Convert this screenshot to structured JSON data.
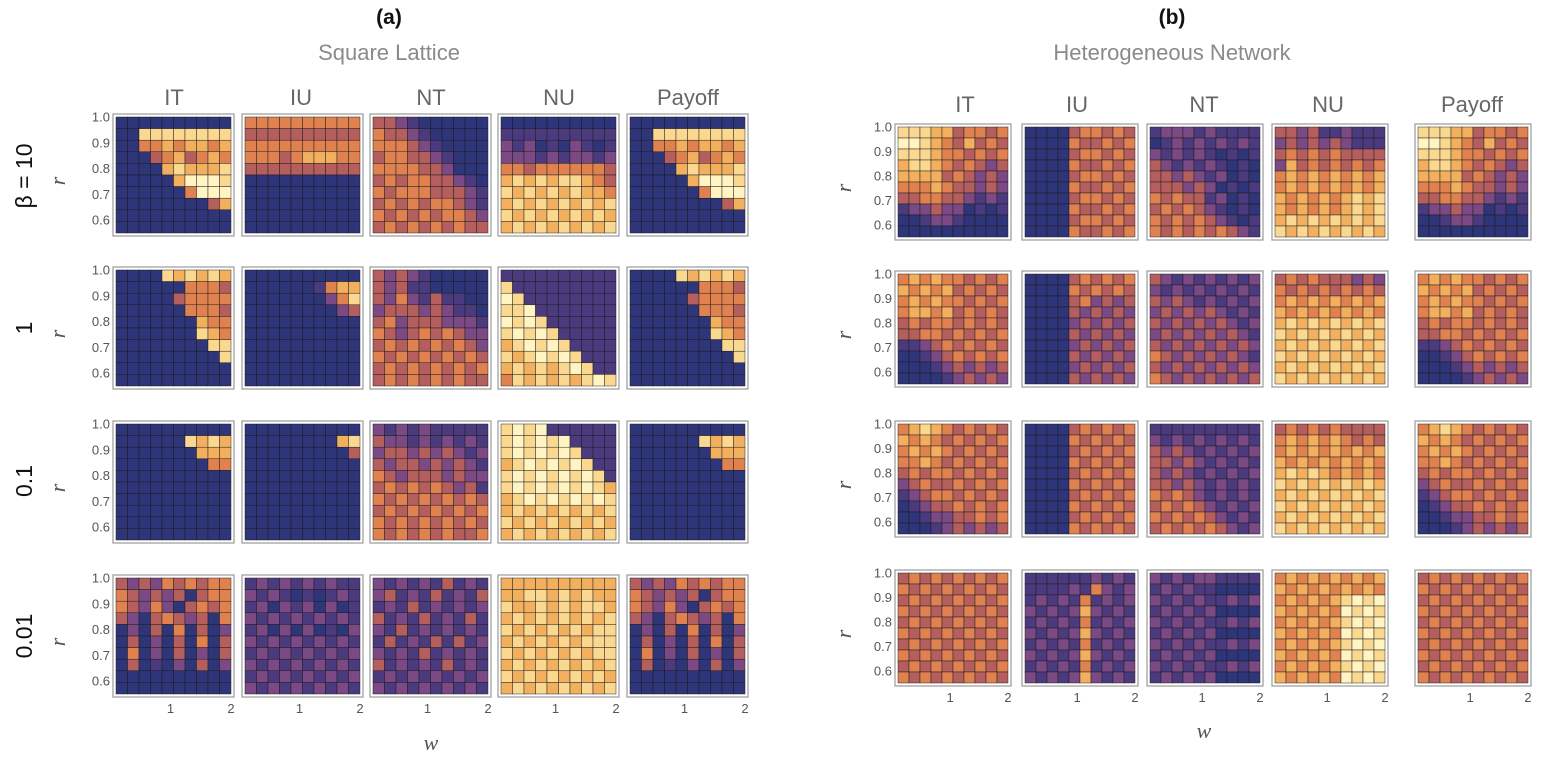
{
  "chart_data": {
    "type": "heatmap",
    "colormap": [
      "#2e3579",
      "#4b3b7e",
      "#7b4a84",
      "#b45e5d",
      "#e0824f",
      "#f2b05f",
      "#fad88f",
      "#fff4c2"
    ],
    "grid_size": [
      10,
      10
    ],
    "row_labels": [
      "β = 10",
      "1",
      "0.1",
      "0.01"
    ],
    "panels": [
      {
        "id": "(a)",
        "title": "Square Lattice",
        "columns": [
          "IT",
          "IU",
          "NT",
          "NU",
          "Payoff"
        ],
        "xlabel": "w",
        "ylabel": "r",
        "xticks": [
          "1",
          "2"
        ],
        "yticks": [
          "1.0",
          "0.9",
          "0.8",
          "0.7",
          "0.6"
        ],
        "r_range": [
          0.55,
          1.0
        ],
        "w_range": [
          0.1,
          2.0
        ]
      },
      {
        "id": "(b)",
        "title": "Heterogeneous Network",
        "columns": [
          "IT",
          "IU",
          "NT",
          "NU",
          "Payoff"
        ],
        "xlabel": "w",
        "ylabel": "r",
        "xticks": [
          "1",
          "2"
        ],
        "yticks": [
          "1.0",
          "0.9",
          "0.8",
          "0.7",
          "0.6"
        ],
        "r_range": [
          0.55,
          1.0
        ],
        "w_range": [
          0.1,
          2.0
        ]
      }
    ],
    "note": "Each small heatmap is a 10x10 grid over w (horizontal) and r (vertical); cell values are strategy fractions / payoff on a 0-1 scale, read approximately from the colors (rows listed top r=1.0 to bottom r=0.55).",
    "data": {
      "a": [
        [
          [
            "0000000000",
            "0066666666",
            "0044545545",
            "0003453454",
            "0000565556",
            "0000057776",
            "0000004777",
            "0000000035",
            "0000000000",
            "0000000000"
          ],
          [
            "4444444444",
            "3333333333",
            "4444444444",
            "4443455544",
            "3333333333",
            "0000000000",
            "0000000000",
            "0000000000",
            "0000000000",
            "0000000000"
          ],
          [
            "3321000000",
            "4332100000",
            "4443210000",
            "3443321000",
            "4444332000",
            "3434433210",
            "4344433321",
            "3434344321",
            "4343434432",
            "3434343433"
          ],
          [
            "0000000000",
            "1111111111",
            "2120102101",
            "2221212212",
            "4434444443",
            "5656566543",
            "6565656554",
            "5656565656",
            "6565656565",
            "5656565656"
          ],
          [
            "0000000000",
            "0066666666",
            "0044545545",
            "0003453454",
            "0000565556",
            "0000057776",
            "0000004777",
            "0000000035",
            "0000000000",
            "0000000000"
          ]
        ],
        [
          [
            "0000656565",
            "0000004443",
            "0000034444",
            "0000004443",
            "0000000544",
            "0000000654",
            "0000000066",
            "0000000006",
            "0000000000",
            "0000000000"
          ],
          [
            "0000000000",
            "0000001455",
            "0000000246",
            "0000000023",
            "0000000000",
            "0000000000",
            "0000000000",
            "0000000000",
            "0000000000",
            "0000000000"
          ],
          [
            "3232100000",
            "3231100000",
            "3242131100",
            "2333232110",
            "3423332221",
            "4323434322",
            "3434343432",
            "4343434343",
            "3434343434",
            "3434343433"
          ],
          [
            "1111111111",
            "6111111111",
            "7611111111",
            "6671111111",
            "7676111111",
            "6767611111",
            "5676761111",
            "6567676111",
            "5656567611",
            "4656565676"
          ],
          [
            "0000656565",
            "0000004443",
            "0000034444",
            "0000004443",
            "0000000544",
            "0000000654",
            "0000000066",
            "0000000006",
            "0000000000",
            "0000000000"
          ]
        ],
        [
          [
            "0000000000",
            "0000006565",
            "0000000555",
            "0000000044",
            "0000000000",
            "0000000000",
            "0000000000",
            "0000000000",
            "0000000000",
            "0000000000"
          ],
          [
            "0000000000",
            "0000000056",
            "0000000003",
            "0000000000",
            "0000000000",
            "0000000000",
            "0000000000",
            "0000000000",
            "0000000000",
            "0000000000"
          ],
          [
            "2121211111",
            "3221212121",
            "2332323212",
            "3233232321",
            "4323332322",
            "3434343231",
            "4343434343",
            "3434343434",
            "4343434343",
            "4343434334"
          ],
          [
            "6767111111",
            "6767671111",
            "6767676111",
            "5676767611",
            "6767676761",
            "6767676765",
            "5676767676",
            "5656565656",
            "6565656565",
            "5656565656"
          ],
          [
            "0000000000",
            "0000006565",
            "0000000555",
            "0000000044",
            "0000000000",
            "0000000000",
            "0000000000",
            "0000000000",
            "0000000000",
            "0000000000"
          ]
        ],
        [
          [
            "3232434344",
            "4323230344",
            "4324203434",
            "3203432304",
            "0203040302",
            "0302030403",
            "0402030203",
            "0301020302",
            "0000000000",
            "0000000000"
          ],
          [
            "1212121211",
            "2121010121",
            "1202120201",
            "2121212121",
            "1202020102",
            "2121212121",
            "1212121212",
            "2121212121",
            "1212121212",
            "2121212121"
          ],
          [
            "2121213121",
            "2312131213",
            "1213121212",
            "3121312131",
            "2131212121",
            "1312131312",
            "2121312121",
            "3121213121",
            "1212121212",
            "2121212121"
          ],
          [
            "5555555555",
            "5566565655",
            "6556565665",
            "5656565656",
            "6565656566",
            "5656565666",
            "6565656566",
            "5656565656",
            "6565656565",
            "5656565656"
          ],
          [
            "3232434344",
            "4323230344",
            "4324203434",
            "3203432304",
            "0203040302",
            "0302030403",
            "0402030203",
            "0301020302",
            "0000000000",
            "0000000000"
          ]
        ]
      ],
      "b": [
        [
          [
            "6665534434",
            "7765435343",
            "6665443434",
            "5665434323",
            "5555343232",
            "4445433232",
            "3344332121",
            "1223220101",
            "0012210000",
            "0000000000"
          ],
          [
            "0000344343",
            "0000433434",
            "0000344343",
            "0000433434",
            "0000344343",
            "0000433434",
            "0000344343",
            "0000433434",
            "0000344343",
            "0000433434"
          ],
          [
            "1222121111",
            "0121212121",
            "2121210101",
            "3212121010",
            "3323212010",
            "3332320101",
            "4343312010",
            "3434321010",
            "4343432101",
            "4343434321"
          ],
          [
            "3323112111",
            "2323232111",
            "3434343333",
            "2534343434",
            "4545454545",
            "4545454545",
            "5454545656",
            "5454545656",
            "5656565656",
            "6565656565"
          ],
          [
            "6665534434",
            "7765435343",
            "6665443434",
            "5665434323",
            "5555343232",
            "4445433232",
            "3344332121",
            "1223220101",
            "0012210000",
            "0000000000"
          ]
        ],
        [
          [
            "4545443434",
            "5454534343",
            "4545443434",
            "4554534343",
            "3434434343",
            "3344343434",
            "1123434343",
            "0012343434",
            "0001232323",
            "0000123232"
          ],
          [
            "0000343434",
            "0000434343",
            "0000342323",
            "0000323232",
            "0000232323",
            "0000323232",
            "0000232323",
            "0000323232",
            "0000232323",
            "0000323232"
          ],
          [
            "3212121212",
            "2121212121",
            "3232121212",
            "2323232121",
            "3232323212",
            "2323232321",
            "3232323232",
            "4323232321",
            "3232323232",
            "4323232323"
          ],
          [
            "3434333232",
            "4343434343",
            "4545454545",
            "5454545454",
            "5656565656",
            "6565656565",
            "5656565656",
            "6565656565",
            "5656565656",
            "6565656565"
          ],
          [
            "4545443434",
            "5454534343",
            "4545443434",
            "4554534343",
            "3434434343",
            "3344343434",
            "1123434343",
            "0012343434",
            "0001232323",
            "0000123232"
          ]
        ],
        [
          [
            "4565434343",
            "5454343434",
            "4545434343",
            "4454343434",
            "3434434343",
            "2343343434",
            "1234434343",
            "0123343434",
            "0012233434",
            "0001232323"
          ],
          [
            "0000343434",
            "0000434343",
            "0000343434",
            "0000434343",
            "0000343434",
            "0000434343",
            "0000343434",
            "0000434343",
            "0000343434",
            "0000434343"
          ],
          [
            "1111111111",
            "2121212121",
            "3232121212",
            "3323212121",
            "3232121212",
            "3323212121",
            "4343212121",
            "3434321212",
            "4343432121",
            "3434343212"
          ],
          [
            "3434343333",
            "4545454343",
            "4545454545",
            "5454545454",
            "5656545454",
            "6565656565",
            "5656565656",
            "6565656565",
            "5656565656",
            "6565656565"
          ],
          [
            "4565434343",
            "5454343434",
            "4545434343",
            "4454343434",
            "3434434343",
            "2343343434",
            "1234434343",
            "0123343434",
            "0012233434",
            "0001232323"
          ]
        ],
        [
          [
            "3434343434",
            "4343434343",
            "3434343434",
            "4343434343",
            "3434343434",
            "4343434343",
            "3434343434",
            "4343434343",
            "3434343434",
            "4343434343"
          ],
          [
            "1111112121",
            "1111214212",
            "1212141212",
            "2121252121",
            "1212141212",
            "2121252121",
            "1212141212",
            "2121252121",
            "1212141212",
            "2121252121"
          ],
          [
            "2121221111",
            "1212110000",
            "2121211212",
            "1212120000",
            "2121211212",
            "1212120000",
            "2121211212",
            "1212120000",
            "2121211212",
            "1212120000"
          ],
          [
            "4545454545",
            "5454545454",
            "4545456767",
            "5454547676",
            "4545456767",
            "5454547676",
            "4545456767",
            "5454547676",
            "4545456767",
            "5454547676"
          ],
          [
            "3434343434",
            "4343434343",
            "3434343434",
            "4343434343",
            "3434343434",
            "4343434343",
            "3434343434",
            "4343434343",
            "3434343434",
            "4343434343"
          ]
        ]
      ]
    }
  }
}
